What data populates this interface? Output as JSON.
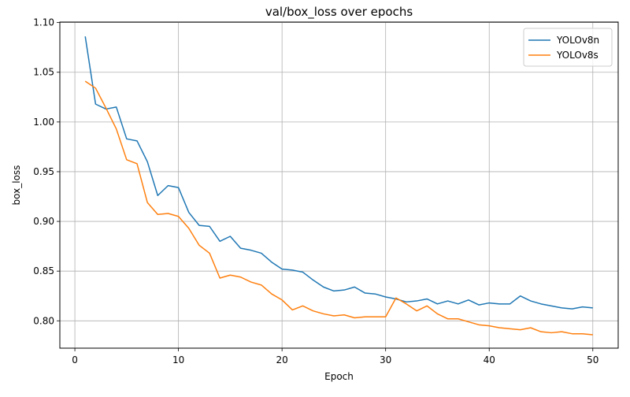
{
  "chart_data": {
    "type": "line",
    "title": "val/box_loss over epochs",
    "xlabel": "Epoch",
    "ylabel": "box_loss",
    "xlim": [
      -1.45,
      52.45
    ],
    "ylim": [
      0.7725,
      1.1005
    ],
    "xticks": [
      0,
      10,
      20,
      30,
      40,
      50
    ],
    "yticks": [
      0.8,
      0.85,
      0.9,
      0.95,
      1.0,
      1.05,
      1.1
    ],
    "ytick_labels": [
      "0.80",
      "0.85",
      "0.90",
      "0.95",
      "1.00",
      "1.05",
      "1.10"
    ],
    "grid": true,
    "legend_position": "top-right",
    "x": [
      1,
      2,
      3,
      4,
      5,
      6,
      7,
      8,
      9,
      10,
      11,
      12,
      13,
      14,
      15,
      16,
      17,
      18,
      19,
      20,
      21,
      22,
      23,
      24,
      25,
      26,
      27,
      28,
      29,
      30,
      31,
      32,
      33,
      34,
      35,
      36,
      37,
      38,
      39,
      40,
      41,
      42,
      43,
      44,
      45,
      46,
      47,
      48,
      49,
      50
    ],
    "series": [
      {
        "name": "YOLOv8n",
        "color": "#1f77b4",
        "values": [
          1.086,
          1.018,
          1.013,
          1.015,
          0.983,
          0.981,
          0.96,
          0.926,
          0.936,
          0.934,
          0.909,
          0.896,
          0.895,
          0.88,
          0.885,
          0.873,
          0.871,
          0.868,
          0.859,
          0.852,
          0.851,
          0.849,
          0.841,
          0.834,
          0.83,
          0.831,
          0.834,
          0.828,
          0.827,
          0.824,
          0.822,
          0.819,
          0.82,
          0.822,
          0.817,
          0.82,
          0.817,
          0.821,
          0.816,
          0.818,
          0.817,
          0.817,
          0.825,
          0.82,
          0.817,
          0.815,
          0.813,
          0.812,
          0.814,
          0.813
        ]
      },
      {
        "name": "YOLOv8s",
        "color": "#ff7f0e",
        "values": [
          1.041,
          1.034,
          1.014,
          0.993,
          0.962,
          0.958,
          0.919,
          0.907,
          0.908,
          0.905,
          0.893,
          0.876,
          0.868,
          0.843,
          0.846,
          0.844,
          0.839,
          0.836,
          0.827,
          0.821,
          0.811,
          0.815,
          0.81,
          0.807,
          0.805,
          0.806,
          0.803,
          0.804,
          0.804,
          0.804,
          0.823,
          0.817,
          0.81,
          0.815,
          0.807,
          0.802,
          0.802,
          0.799,
          0.796,
          0.795,
          0.793,
          0.792,
          0.791,
          0.793,
          0.789,
          0.788,
          0.789,
          0.787,
          0.787,
          0.786
        ]
      }
    ]
  }
}
